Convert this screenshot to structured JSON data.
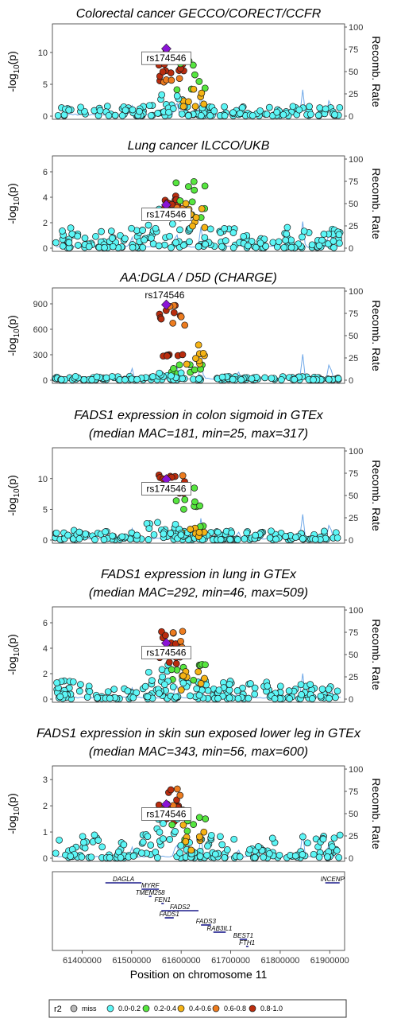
{
  "chart_data": {
    "type": "scatter",
    "x_axis": {
      "label": "Position on chromosome 11",
      "range": [
        61340000,
        61930000
      ],
      "ticks": [
        "61400000",
        "61500000",
        "61600000",
        "61700000",
        "61800000",
        "61900000"
      ]
    },
    "y_axis_label": "-log10(p)",
    "y_axis_label_parts": {
      "main": "-log",
      "sub": "10",
      "rest": "(p)"
    },
    "right_axis": {
      "label": "Recomb. Rate",
      "ticks": [
        "0",
        "25",
        "50",
        "75",
        "100"
      ]
    },
    "lead_snp": "rs174546",
    "legend": {
      "title": "r2",
      "entries": [
        {
          "label": "miss",
          "color": "#b9b9b9"
        },
        {
          "label": "0.0-0.2",
          "color": "#5cf6f6"
        },
        {
          "label": "0.2-0.4",
          "color": "#56e63f"
        },
        {
          "label": "0.4-0.6",
          "color": "#f5b315"
        },
        {
          "label": "0.6-0.8",
          "color": "#ed7c1f"
        },
        {
          "label": "0.8-1.0",
          "color": "#b92c0e"
        }
      ]
    },
    "lead_color": "#8a14d6",
    "recomb_color": "#6fa8e8",
    "panels": [
      {
        "title_lines": [
          "Colorectal cancer GECCO/CORECT/CCFR"
        ],
        "ylim": [
          0,
          14
        ],
        "yticks": [
          "0",
          "5",
          "10"
        ],
        "ytick_values": [
          0,
          5,
          10
        ],
        "lead_y": 10.6,
        "n0": 150,
        "noise": 1.5,
        "band1": [
          5,
          9.6
        ],
        "band2": [
          6.9,
          10.7
        ],
        "mid1": [
          3.2,
          9.3
        ],
        "mid2": [
          1.0,
          5.0
        ],
        "low": [
          0.5,
          3.5
        ]
      },
      {
        "title_lines": [
          "Lung cancer ILCCO/UKB"
        ],
        "ylim": [
          0,
          7
        ],
        "yticks": [
          "0",
          "2",
          "4",
          "6"
        ],
        "ytick_values": [
          0,
          2,
          4,
          6
        ],
        "lead_y": 3.4,
        "n0": 180,
        "noise": 1.6,
        "band1": [
          2.6,
          4.3
        ],
        "band2": [
          2.9,
          3.9
        ],
        "mid1": [
          1.8,
          5.5
        ],
        "mid2": [
          1.5,
          3.6
        ],
        "low": [
          0.4,
          3.2
        ]
      },
      {
        "title_lines": [
          "AA:DGLA / D5D (CHARGE)"
        ],
        "ylim": [
          0,
          1050
        ],
        "yticks": [
          "0",
          "300",
          "600",
          "900"
        ],
        "ytick_values": [
          0,
          300,
          600,
          900
        ],
        "lead_y": 890,
        "n0": 140,
        "noise": 40,
        "band1": [
          690,
          880
        ],
        "band2": [
          280,
          310
        ],
        "mid1": [
          60,
          230
        ],
        "mid2": [
          150,
          450
        ],
        "low": [
          20,
          90
        ]
      },
      {
        "title_lines": [
          "FADS1 expression in colon sigmoid in GTEx",
          "(median MAC=181, min=25, max=317)"
        ],
        "ylim": [
          0,
          14.5
        ],
        "yticks": [
          "0",
          "5",
          "10"
        ],
        "ytick_values": [
          0,
          5,
          10
        ],
        "lead_y": 9.9,
        "n0": 170,
        "noise": 1.5,
        "band1": [
          8.4,
          10.7
        ],
        "band2": [
          7.5,
          10.3
        ],
        "mid1": [
          1.8,
          9.2
        ],
        "mid2": [
          0.3,
          2.4
        ],
        "low": [
          0.6,
          4.2
        ]
      },
      {
        "title_lines": [
          "FADS1 expression in lung in GTEx",
          "(median MAC=292, min=46, max=509)"
        ],
        "ylim": [
          0,
          7
        ],
        "yticks": [
          "0",
          "2",
          "4",
          "6"
        ],
        "ytick_values": [
          0,
          2,
          4,
          6
        ],
        "lead_y": 4.4,
        "n0": 180,
        "noise": 1.4,
        "band1": [
          2.9,
          5.5
        ],
        "band2": [
          2.7,
          5.2
        ],
        "mid1": [
          1.0,
          3.1
        ],
        "mid2": [
          0.6,
          2.3
        ],
        "low": [
          0.4,
          2.6
        ]
      },
      {
        "title_lines": [
          "FADS1 expression in skin sun exposed lower leg in GTEx",
          "(median MAC=343, min=56, max=600)"
        ],
        "ylim": [
          0,
          3.4
        ],
        "yticks": [
          "0",
          "1",
          "2",
          "3"
        ],
        "ytick_values": [
          0,
          1,
          2,
          3
        ],
        "lead_y": 2.05,
        "n0": 180,
        "noise": 0.9,
        "band1": [
          1.8,
          2.7
        ],
        "band2": [
          1.3,
          2.0
        ],
        "mid1": [
          0.3,
          1.6
        ],
        "mid2": [
          0.2,
          1.4
        ],
        "low": [
          0.3,
          1.6
        ]
      }
    ],
    "genes": [
      {
        "name": "DAGLA",
        "start": 61447000,
        "end": 61520000,
        "row": 0
      },
      {
        "name": "MYRF",
        "start": 61520000,
        "end": 61555000,
        "row": 1
      },
      {
        "name": "TMEM258",
        "start": 61535000,
        "end": 61540000,
        "row": 2
      },
      {
        "name": "FEN1",
        "start": 61560000,
        "end": 61565000,
        "row": 3
      },
      {
        "name": "FADS2",
        "start": 61560000,
        "end": 61635000,
        "row": 4
      },
      {
        "name": "FADS1",
        "start": 61567000,
        "end": 61585000,
        "row": 5
      },
      {
        "name": "FADS3",
        "start": 61640000,
        "end": 61660000,
        "row": 6
      },
      {
        "name": "RAB3IL1",
        "start": 61665000,
        "end": 61690000,
        "row": 7
      },
      {
        "name": "BEST1",
        "start": 61718000,
        "end": 61733000,
        "row": 8
      },
      {
        "name": "FTH1",
        "start": 61731000,
        "end": 61735000,
        "row": 9
      },
      {
        "name": "INCENP",
        "start": 61891000,
        "end": 61920000,
        "row": 0
      }
    ]
  }
}
